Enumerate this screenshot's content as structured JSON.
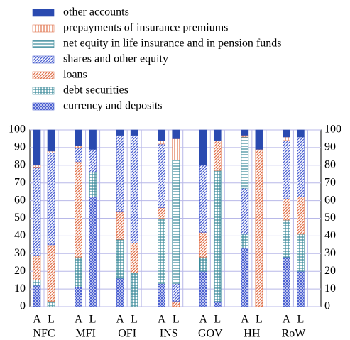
{
  "chart_data": {
    "type": "stacked-bar",
    "categories": [
      "A",
      "L",
      "A",
      "L",
      "A",
      "L",
      "A",
      "L",
      "A",
      "L",
      "A",
      "L",
      "A",
      "L"
    ],
    "groups": [
      "NFC",
      "MFI",
      "OFI",
      "INS",
      "GOV",
      "HH",
      "RoW"
    ],
    "series": [
      {
        "name": "currency and deposits",
        "color": "#4a5fd0",
        "hatch": "crosshatch",
        "values": [
          12,
          0,
          11,
          62,
          16,
          0,
          13,
          0,
          20,
          3,
          33,
          0,
          28,
          20
        ]
      },
      {
        "name": "debt securities",
        "color": "#3a8a9a",
        "hatch": "grid",
        "values": [
          3,
          3,
          17,
          14,
          22,
          19,
          37,
          0,
          8,
          74,
          8,
          0,
          21,
          21
        ]
      },
      {
        "name": "loans",
        "color": "#e0704a",
        "hatch": "diagonal",
        "values": [
          14,
          32,
          54,
          0,
          16,
          17,
          6,
          3,
          14,
          17,
          0,
          89,
          12,
          21
        ]
      },
      {
        "name": "shares and other equity",
        "color": "#4a5fd0",
        "hatch": "diagonal",
        "values": [
          50,
          52,
          8,
          13,
          43,
          61,
          36,
          10,
          38,
          0,
          26,
          0,
          33,
          34
        ]
      },
      {
        "name": "net equity in life insurance and in pension funds",
        "color": "#3a8a9a",
        "hatch": "horizontal",
        "values": [
          0,
          0,
          0,
          0,
          0,
          0,
          0,
          70,
          0,
          0,
          29,
          0,
          0,
          0
        ]
      },
      {
        "name": "prepayments of insurance premiums",
        "color": "#e0704a",
        "hatch": "vertical",
        "values": [
          1,
          1,
          1,
          0,
          0,
          0,
          2,
          12,
          0,
          0,
          1,
          0,
          2,
          0
        ]
      },
      {
        "name": "other accounts",
        "color": "#2a4ab0",
        "hatch": "solid",
        "values": [
          20,
          12,
          9,
          11,
          3,
          3,
          6,
          5,
          20,
          6,
          3,
          11,
          4,
          4
        ]
      }
    ],
    "ylim": [
      0,
      100
    ],
    "yticks": [
      0,
      10,
      20,
      30,
      40,
      50,
      60,
      70,
      80,
      90,
      100
    ],
    "grid": true,
    "legend": "top-left"
  }
}
